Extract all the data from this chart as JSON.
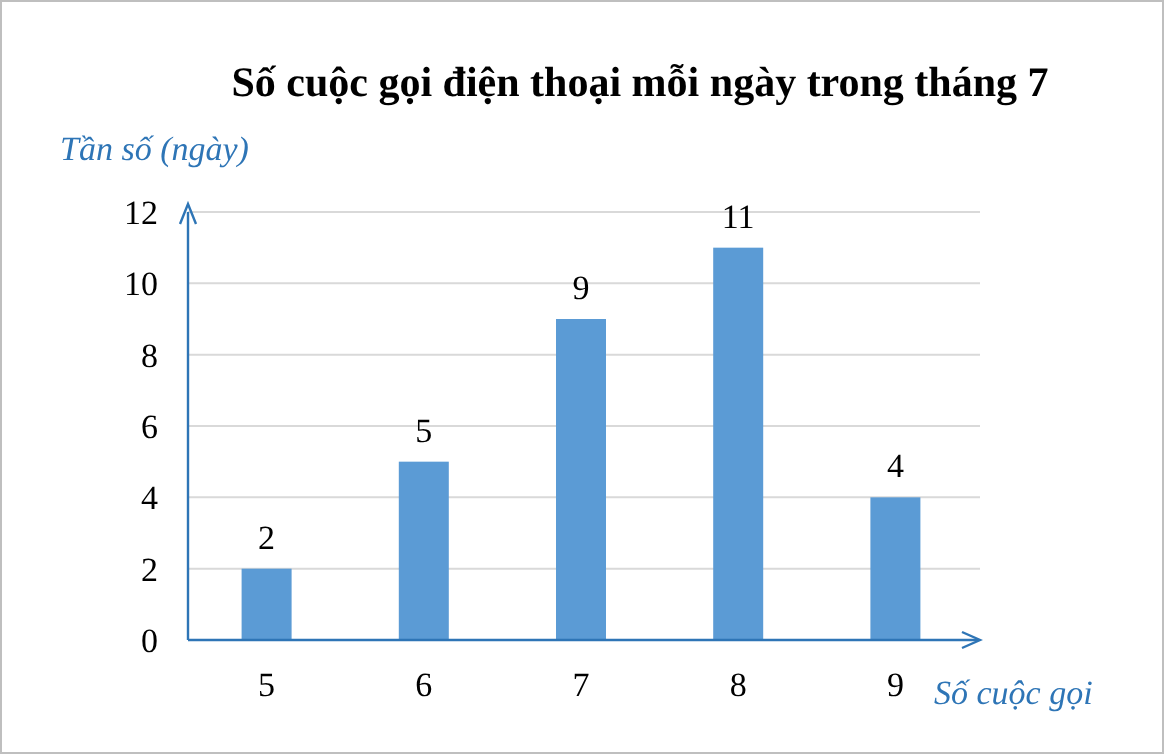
{
  "chart_data": {
    "type": "bar",
    "title": "Số cuộc gọi điện thoại mỗi ngày trong tháng 7",
    "xlabel": "Số cuộc gọi",
    "ylabel": "Tần số (ngày)",
    "categories": [
      "5",
      "6",
      "7",
      "8",
      "9"
    ],
    "values": [
      2,
      5,
      9,
      11,
      4
    ],
    "color": "#5b9bd5",
    "ylim": [
      0,
      12
    ],
    "yticks": [
      0,
      2,
      4,
      6,
      8,
      10,
      12
    ],
    "grid": "y",
    "data_labels": true
  }
}
